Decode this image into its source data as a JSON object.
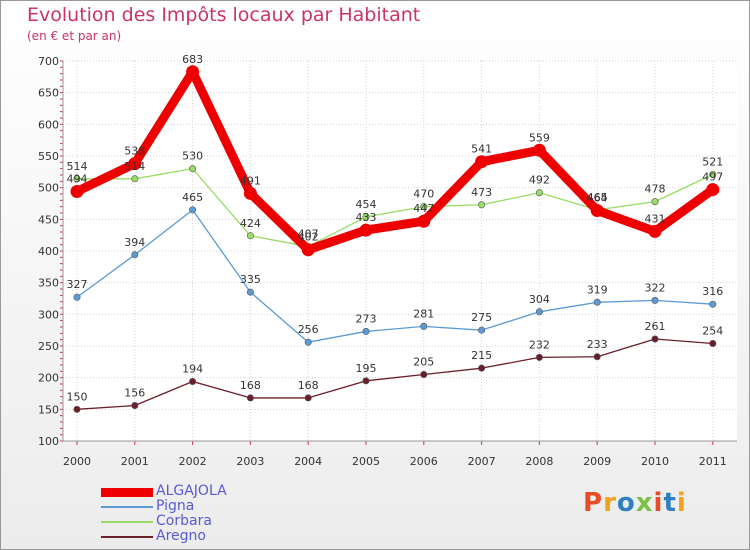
{
  "chart_data": {
    "type": "line",
    "title": "Evolution des Impôts locaux par Habitant",
    "subtitle": "(en € et par an)",
    "x": [
      "2000",
      "2001",
      "2002",
      "2003",
      "2004",
      "2005",
      "2006",
      "2007",
      "2008",
      "2009",
      "2010",
      "2011"
    ],
    "ylim": [
      100,
      700
    ],
    "yticks": [
      "100",
      "150",
      "200",
      "250",
      "300",
      "350",
      "400",
      "450",
      "500",
      "550",
      "600",
      "650",
      "700"
    ],
    "grid": true,
    "legend_position": "bottom-left",
    "series": [
      {
        "name": "ALGAJOLA",
        "color": "#ee0000",
        "values": [
          494,
          538,
          683,
          491,
          402,
          433,
          447,
          541,
          559,
          464,
          431,
          497
        ]
      },
      {
        "name": "Pigna",
        "color": "#5b9bd5",
        "values": [
          327,
          394,
          465,
          335,
          256,
          273,
          281,
          275,
          304,
          319,
          322,
          316
        ]
      },
      {
        "name": "Corbara",
        "color": "#99dd66",
        "values": [
          514,
          514,
          530,
          424,
          407,
          454,
          470,
          473,
          492,
          465,
          478,
          521
        ]
      },
      {
        "name": "Aregno",
        "color": "#6b1f2a",
        "values": [
          150,
          156,
          194,
          168,
          168,
          195,
          205,
          215,
          232,
          233,
          261,
          254
        ]
      }
    ]
  },
  "logo": {
    "text": "Proxiti",
    "colors": [
      "#e84b25",
      "#f4a21b",
      "#2f7fc1",
      "#7cc242",
      "#e84b25",
      "#2f7fc1",
      "#f4a21b"
    ]
  }
}
